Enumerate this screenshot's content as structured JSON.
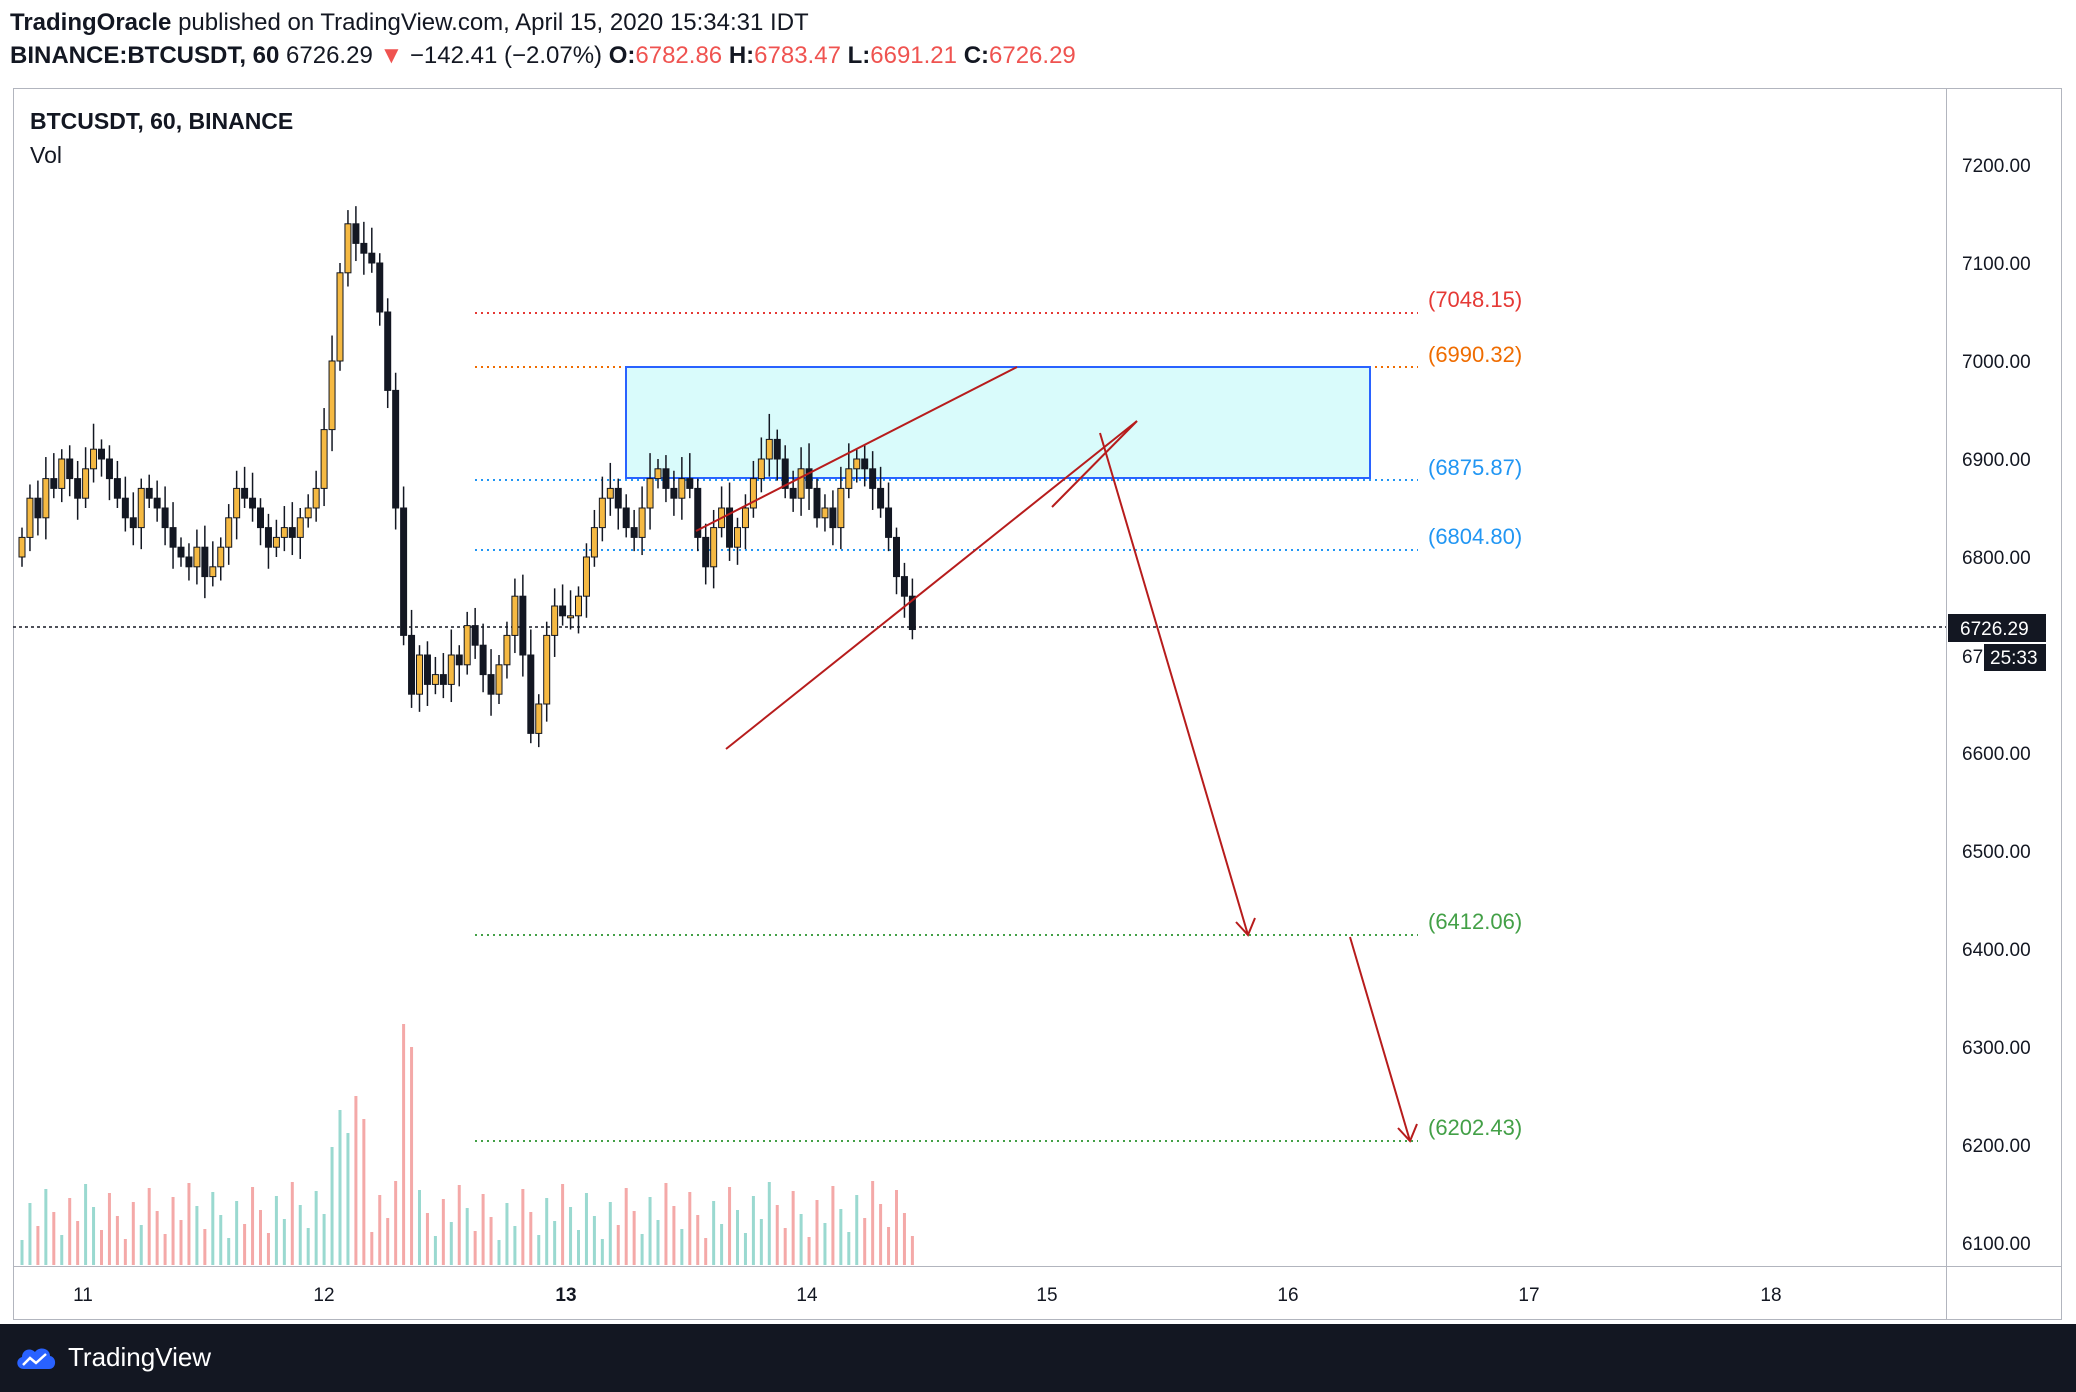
{
  "header": {
    "author": "TradingOracle",
    "published_text": "published on TradingView.com, April 15, 2020 15:34:31 IDT",
    "symbol_line": "BINANCE:BTCUSDT, 60",
    "last": "6726.29",
    "change": "−142.41 (−2.07%)",
    "o_label": "O:",
    "o": "6782.86",
    "h_label": "H:",
    "h": "6783.47",
    "l_label": "L:",
    "l": "6691.21",
    "c_label": "C:",
    "c": "6726.29"
  },
  "legend": {
    "symbol": "BTCUSDT, 60, BINANCE",
    "indicator": "Vol"
  },
  "price_axis": {
    "ticks": [
      "7200.00",
      "7100.00",
      "7000.00",
      "6900.00",
      "6800.00",
      "6726.29",
      "6600.00",
      "6500.00",
      "6400.00",
      "6300.00",
      "6200.00",
      "6100.00"
    ],
    "current_price": "6726.29",
    "countdown": "25:33",
    "partial_label": "67"
  },
  "time_axis": {
    "labels": [
      "11",
      "12",
      "13",
      "14",
      "15",
      "16",
      "17",
      "18"
    ],
    "bold_label": "13"
  },
  "levels": {
    "r2": "(7048.15)",
    "r1": "(6990.32)",
    "zone_low": "(6875.87)",
    "s0": "(6804.80)",
    "t1": "(6412.06)",
    "t2": "(6202.43)"
  },
  "colors": {
    "up": "#f5b942",
    "down": "#131722",
    "box_fill": "#d9fbfb",
    "box_stroke": "#2962ff",
    "red_level": "#e53935",
    "orange_level": "#ef6c00",
    "blue_level": "#2196f3",
    "green_level": "#43a047",
    "trend": "#b71c1c"
  },
  "footer": {
    "brand": "TradingView"
  }
}
